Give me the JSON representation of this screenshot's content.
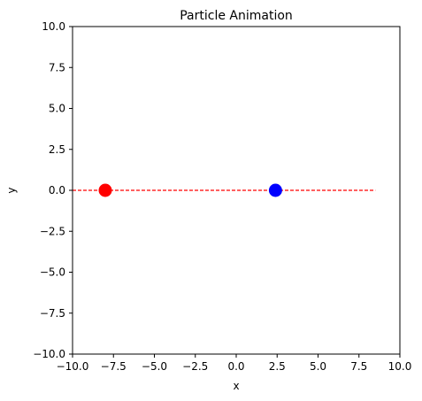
{
  "chart_data": {
    "type": "scatter",
    "title": "Particle Animation",
    "xlabel": "x",
    "ylabel": "y",
    "xlim": [
      -10,
      10
    ],
    "ylim": [
      -10,
      10
    ],
    "xticks": [
      -10,
      -7.5,
      -5,
      -2.5,
      0,
      2.5,
      5,
      7.5,
      10
    ],
    "yticks": [
      -10,
      -7.5,
      -5,
      -2.5,
      0,
      2.5,
      5,
      7.5,
      10
    ],
    "xtick_labels": [
      "−10.0",
      "−7.5",
      "−5.0",
      "−2.5",
      "0.0",
      "2.5",
      "5.0",
      "7.5",
      "10.0"
    ],
    "ytick_labels": [
      "−10.0",
      "−7.5",
      "−5.0",
      "−2.5",
      "0.0",
      "2.5",
      "5.0",
      "7.5",
      "10.0"
    ],
    "grid": false,
    "legend": "none",
    "points": [
      {
        "x": -8.0,
        "y": 0.0,
        "color": "#ff0000"
      },
      {
        "x": 2.4,
        "y": 0.0,
        "color": "#0000ff"
      }
    ],
    "trajectory": {
      "color": "#ff0000",
      "style": "dashed",
      "x": [
        -10.0,
        8.5
      ],
      "y": [
        0.0,
        0.0
      ]
    }
  }
}
